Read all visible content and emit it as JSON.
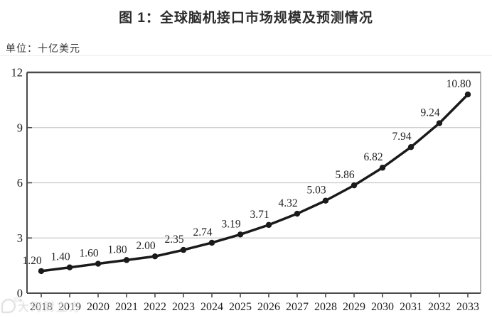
{
  "page": {
    "title": "图 1：全球脑机接口市场规模及预测情况",
    "unit_label": "单位：十亿美元",
    "watermark": "大河财立方"
  },
  "chart_data": {
    "type": "line",
    "title": "图 1：全球脑机接口市场规模及预测情况",
    "ylabel": "十亿美元",
    "xlabel": "",
    "categories": [
      "2018",
      "2019",
      "2020",
      "2021",
      "2022",
      "2023",
      "2024",
      "2025",
      "2026",
      "2027",
      "2028",
      "2029",
      "2030",
      "2031",
      "2032",
      "2033"
    ],
    "values": [
      1.2,
      1.4,
      1.6,
      1.8,
      2.0,
      2.35,
      2.74,
      3.19,
      3.71,
      4.32,
      5.03,
      5.86,
      6.82,
      7.94,
      9.24,
      10.8
    ],
    "value_labels": [
      "1.20",
      "1.40",
      "1.60",
      "1.80",
      "2.00",
      "2.35",
      "2.74",
      "3.19",
      "3.71",
      "4.32",
      "5.03",
      "5.86",
      "6.82",
      "7.94",
      "9.24",
      "10.80"
    ],
    "ylim": [
      0,
      12
    ],
    "yticks": [
      0,
      3,
      6,
      9,
      12
    ],
    "grid": true,
    "legend": "none",
    "colors": {
      "line": "#1a1a1a",
      "marker": "#1a1a1a",
      "grid": "#c9c9c9",
      "axis": "#4a4a4a",
      "border_right": "#979797",
      "text": "#1f1f1f"
    }
  }
}
